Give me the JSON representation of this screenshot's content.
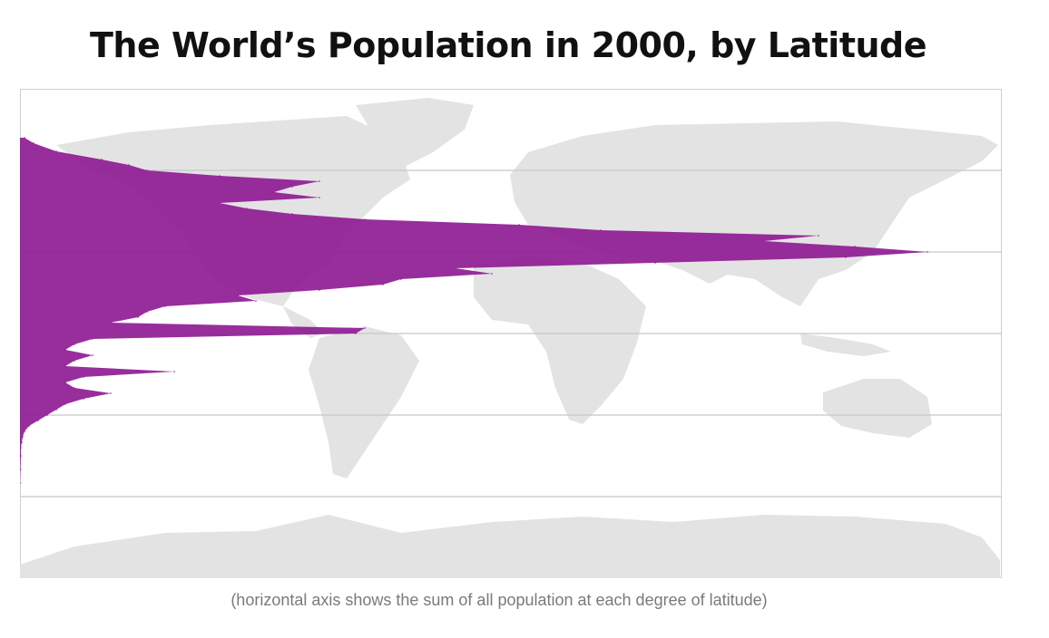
{
  "title": "The World’s Population in 2000, by Latitude",
  "caption": "(horizontal axis shows the sum of all population at each degree of latitude)",
  "colors": {
    "series": "#8e1c94",
    "land": "#e3e3e3",
    "grid": "#c8c8c8",
    "frame": "#cfcfcf"
  },
  "chart_data": {
    "type": "area",
    "title": "The World’s Population in 2000, by Latitude",
    "xlabel": "",
    "ylabel": "",
    "orientation": "horizontal",
    "background": "world map",
    "grid": true,
    "ylim": [
      -90,
      90
    ],
    "xlim": [
      0,
      100
    ],
    "x_units": "relative population (percent of maximum)",
    "gridline_latitudes": [
      60,
      30,
      0,
      -30,
      -60
    ],
    "series": [
      {
        "name": "",
        "latitude": [
          72,
          70,
          67,
          64,
          62,
          60,
          58,
          56,
          54,
          52,
          50,
          48,
          46,
          44,
          42,
          40,
          38,
          36,
          34,
          32,
          30,
          28,
          26,
          24,
          22,
          20,
          18,
          16,
          14,
          12,
          10,
          8,
          6,
          4,
          2,
          0,
          -2,
          -4,
          -6,
          -8,
          -10,
          -12,
          -14,
          -16,
          -18,
          -20,
          -22,
          -24,
          -26,
          -28,
          -30,
          -32,
          -34,
          -36,
          -38,
          -40,
          -42,
          -45,
          -50,
          -55
        ],
        "value": [
          0.5,
          1.5,
          4,
          9,
          12,
          14,
          22,
          33,
          30,
          28,
          33,
          22,
          25,
          30,
          38,
          55,
          64,
          88,
          82,
          92,
          100,
          91,
          70,
          48,
          52,
          42,
          40,
          33,
          24,
          26,
          16,
          14,
          13,
          10,
          38,
          37,
          8,
          6,
          5,
          8,
          6,
          5,
          17,
          7,
          5,
          6,
          10,
          7,
          5,
          4,
          3,
          2,
          1,
          0.5,
          0.3,
          0.2,
          0.1,
          0.1,
          0.05,
          0
        ]
      }
    ]
  }
}
